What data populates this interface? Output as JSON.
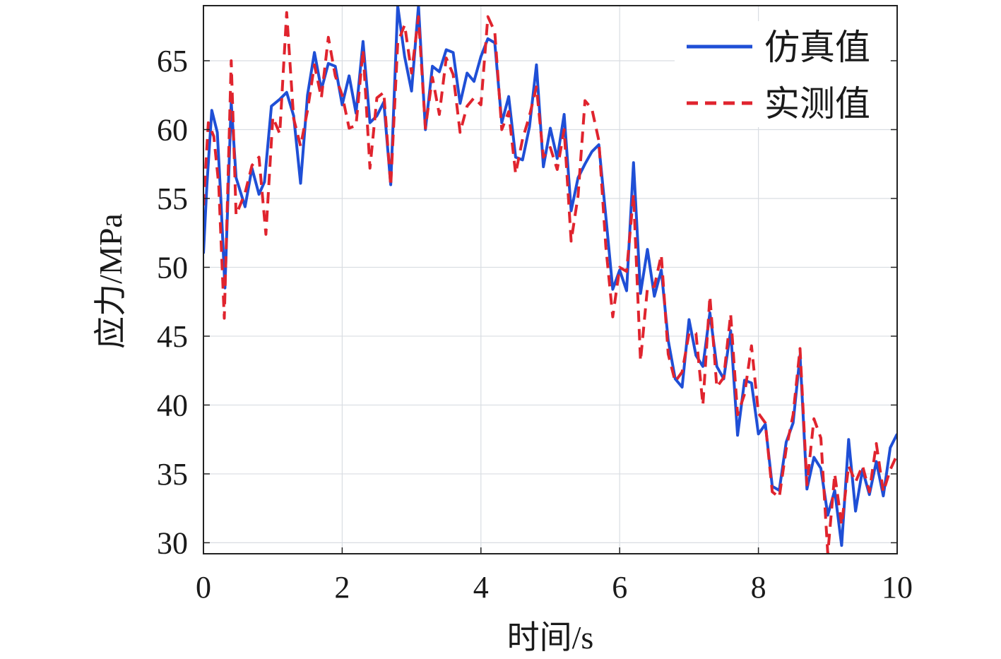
{
  "chart_data": {
    "type": "line",
    "xlabel": "时间/s",
    "ylabel": "应力/MPa",
    "xlim": [
      0,
      10
    ],
    "ylim": [
      29.2,
      69.0
    ],
    "xticks": [
      0,
      2,
      4,
      6,
      8,
      10
    ],
    "yticks": [
      30,
      35,
      40,
      45,
      50,
      55,
      60,
      65
    ],
    "grid": true,
    "legend_position": "top-right",
    "series": [
      {
        "name": "仿真值",
        "color": "#1f4fd6",
        "style": "solid",
        "points": [
          [
            0.0,
            51.0
          ],
          [
            0.05,
            56.0
          ],
          [
            0.12,
            61.4
          ],
          [
            0.2,
            59.8
          ],
          [
            0.25,
            55.0
          ],
          [
            0.31,
            48.5
          ],
          [
            0.4,
            62.0
          ],
          [
            0.47,
            56.5
          ],
          [
            0.6,
            54.4
          ],
          [
            0.7,
            57.2
          ],
          [
            0.8,
            55.3
          ],
          [
            0.88,
            56.2
          ],
          [
            0.98,
            61.7
          ],
          [
            1.1,
            62.2
          ],
          [
            1.2,
            62.7
          ],
          [
            1.3,
            61.0
          ],
          [
            1.4,
            56.1
          ],
          [
            1.5,
            62.5
          ],
          [
            1.6,
            65.6
          ],
          [
            1.7,
            62.9
          ],
          [
            1.8,
            64.8
          ],
          [
            1.9,
            64.6
          ],
          [
            2.0,
            61.8
          ],
          [
            2.1,
            63.9
          ],
          [
            2.2,
            61.2
          ],
          [
            2.3,
            66.4
          ],
          [
            2.4,
            60.5
          ],
          [
            2.5,
            61.0
          ],
          [
            2.6,
            62.0
          ],
          [
            2.7,
            56.0
          ],
          [
            2.8,
            69.0
          ],
          [
            2.9,
            65.3
          ],
          [
            3.0,
            62.8
          ],
          [
            3.1,
            69.0
          ],
          [
            3.2,
            60.0
          ],
          [
            3.3,
            64.6
          ],
          [
            3.4,
            64.2
          ],
          [
            3.5,
            65.8
          ],
          [
            3.6,
            65.6
          ],
          [
            3.7,
            61.9
          ],
          [
            3.8,
            64.1
          ],
          [
            3.9,
            63.5
          ],
          [
            4.0,
            65.3
          ],
          [
            4.1,
            66.6
          ],
          [
            4.2,
            66.3
          ],
          [
            4.3,
            60.5
          ],
          [
            4.4,
            62.4
          ],
          [
            4.5,
            58.0
          ],
          [
            4.6,
            57.8
          ],
          [
            4.7,
            60.2
          ],
          [
            4.8,
            64.7
          ],
          [
            4.9,
            57.3
          ],
          [
            5.0,
            60.1
          ],
          [
            5.1,
            57.9
          ],
          [
            5.2,
            61.1
          ],
          [
            5.3,
            54.1
          ],
          [
            5.4,
            56.5
          ],
          [
            5.5,
            57.5
          ],
          [
            5.6,
            58.4
          ],
          [
            5.7,
            58.9
          ],
          [
            5.8,
            53.7
          ],
          [
            5.9,
            48.4
          ],
          [
            6.0,
            49.8
          ],
          [
            6.1,
            48.3
          ],
          [
            6.2,
            57.6
          ],
          [
            6.3,
            48.1
          ],
          [
            6.4,
            51.3
          ],
          [
            6.5,
            47.9
          ],
          [
            6.6,
            49.8
          ],
          [
            6.7,
            44.7
          ],
          [
            6.8,
            41.9
          ],
          [
            6.9,
            41.3
          ],
          [
            7.0,
            46.2
          ],
          [
            7.1,
            43.6
          ],
          [
            7.2,
            42.8
          ],
          [
            7.3,
            46.7
          ],
          [
            7.4,
            42.8
          ],
          [
            7.5,
            41.9
          ],
          [
            7.6,
            45.4
          ],
          [
            7.7,
            37.8
          ],
          [
            7.8,
            41.8
          ],
          [
            7.9,
            41.6
          ],
          [
            8.0,
            37.9
          ],
          [
            8.1,
            38.6
          ],
          [
            8.2,
            34.1
          ],
          [
            8.3,
            33.8
          ],
          [
            8.4,
            37.3
          ],
          [
            8.5,
            38.7
          ],
          [
            8.6,
            43.6
          ],
          [
            8.7,
            33.9
          ],
          [
            8.8,
            36.2
          ],
          [
            8.9,
            35.4
          ],
          [
            9.0,
            32.0
          ],
          [
            9.1,
            33.8
          ],
          [
            9.2,
            29.8
          ],
          [
            9.3,
            37.5
          ],
          [
            9.4,
            32.3
          ],
          [
            9.5,
            35.3
          ],
          [
            9.6,
            33.5
          ],
          [
            9.7,
            35.9
          ],
          [
            9.8,
            33.4
          ],
          [
            9.9,
            36.9
          ],
          [
            10.0,
            37.9
          ]
        ]
      },
      {
        "name": "实测值",
        "color": "#e0242e",
        "style": "dashed",
        "points": [
          [
            0.0,
            54.5
          ],
          [
            0.07,
            60.5
          ],
          [
            0.15,
            59.5
          ],
          [
            0.22,
            56.0
          ],
          [
            0.3,
            46.3
          ],
          [
            0.4,
            65.0
          ],
          [
            0.47,
            53.8
          ],
          [
            0.6,
            55.4
          ],
          [
            0.7,
            57.4
          ],
          [
            0.8,
            58.0
          ],
          [
            0.9,
            52.4
          ],
          [
            1.0,
            60.9
          ],
          [
            1.1,
            59.7
          ],
          [
            1.2,
            68.5
          ],
          [
            1.3,
            60.8
          ],
          [
            1.4,
            58.8
          ],
          [
            1.5,
            61.4
          ],
          [
            1.6,
            64.7
          ],
          [
            1.7,
            62.3
          ],
          [
            1.8,
            66.7
          ],
          [
            1.9,
            63.9
          ],
          [
            2.0,
            62.5
          ],
          [
            2.1,
            60.1
          ],
          [
            2.2,
            60.3
          ],
          [
            2.3,
            65.8
          ],
          [
            2.4,
            57.2
          ],
          [
            2.5,
            62.3
          ],
          [
            2.6,
            62.7
          ],
          [
            2.7,
            55.9
          ],
          [
            2.8,
            66.3
          ],
          [
            2.9,
            67.6
          ],
          [
            3.0,
            64.1
          ],
          [
            3.1,
            68.2
          ],
          [
            3.2,
            60.1
          ],
          [
            3.3,
            63.8
          ],
          [
            3.4,
            61.1
          ],
          [
            3.5,
            65.2
          ],
          [
            3.6,
            64.0
          ],
          [
            3.7,
            59.8
          ],
          [
            3.8,
            61.7
          ],
          [
            3.9,
            62.3
          ],
          [
            4.0,
            61.8
          ],
          [
            4.1,
            68.2
          ],
          [
            4.2,
            67.1
          ],
          [
            4.3,
            60.0
          ],
          [
            4.4,
            61.3
          ],
          [
            4.5,
            56.8
          ],
          [
            4.6,
            59.3
          ],
          [
            4.7,
            61.0
          ],
          [
            4.8,
            63.1
          ],
          [
            4.9,
            58.0
          ],
          [
            5.0,
            58.7
          ],
          [
            5.1,
            57.1
          ],
          [
            5.2,
            60.0
          ],
          [
            5.3,
            51.9
          ],
          [
            5.4,
            55.2
          ],
          [
            5.5,
            62.1
          ],
          [
            5.6,
            61.5
          ],
          [
            5.7,
            59.2
          ],
          [
            5.8,
            51.5
          ],
          [
            5.9,
            46.4
          ],
          [
            6.0,
            50.0
          ],
          [
            6.1,
            49.7
          ],
          [
            6.2,
            55.3
          ],
          [
            6.3,
            43.2
          ],
          [
            6.4,
            48.5
          ],
          [
            6.5,
            48.6
          ],
          [
            6.6,
            50.9
          ],
          [
            6.7,
            43.7
          ],
          [
            6.8,
            41.7
          ],
          [
            6.9,
            42.4
          ],
          [
            7.0,
            45.2
          ],
          [
            7.1,
            45.2
          ],
          [
            7.2,
            40.0
          ],
          [
            7.3,
            47.9
          ],
          [
            7.4,
            41.3
          ],
          [
            7.5,
            42.0
          ],
          [
            7.6,
            46.6
          ],
          [
            7.7,
            39.3
          ],
          [
            7.8,
            40.8
          ],
          [
            7.9,
            44.3
          ],
          [
            8.0,
            39.4
          ],
          [
            8.1,
            38.7
          ],
          [
            8.2,
            33.7
          ],
          [
            8.3,
            33.3
          ],
          [
            8.4,
            36.8
          ],
          [
            8.5,
            39.3
          ],
          [
            8.6,
            44.1
          ],
          [
            8.7,
            34.2
          ],
          [
            8.8,
            39.0
          ],
          [
            8.9,
            37.6
          ],
          [
            9.0,
            29.2
          ],
          [
            9.1,
            35.0
          ],
          [
            9.2,
            31.3
          ],
          [
            9.3,
            35.6
          ],
          [
            9.4,
            34.4
          ],
          [
            9.5,
            35.6
          ],
          [
            9.6,
            33.7
          ],
          [
            9.7,
            37.2
          ],
          [
            9.8,
            33.7
          ],
          [
            9.9,
            35.3
          ],
          [
            10.0,
            36.4
          ]
        ]
      }
    ]
  }
}
